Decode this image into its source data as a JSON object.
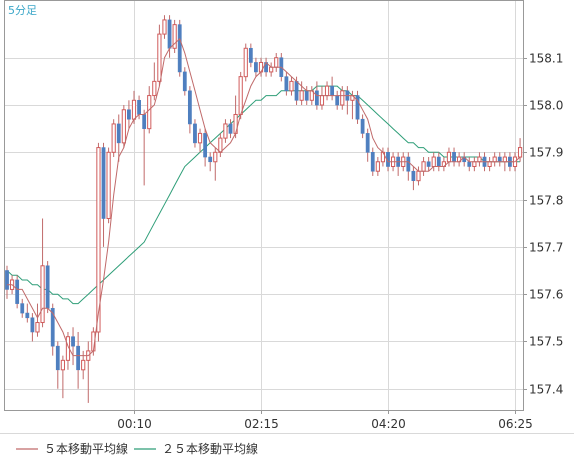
{
  "chart_data": {
    "type": "candlestick",
    "timeframe_label": "5分足",
    "x_tick_labels": [
      "00:10",
      "02:15",
      "04:20",
      "06:25"
    ],
    "y_ticks": [
      157.4,
      157.5,
      157.6,
      157.7,
      157.8,
      157.9,
      158.0,
      158.1
    ],
    "y_tick_labels": [
      "157.4",
      "157.5",
      "157.6",
      "157.7",
      "157.8",
      "157.9",
      "158.0",
      "158.1"
    ],
    "ylim": [
      157.355,
      158.22
    ],
    "grid": true,
    "legend_position": "bottom",
    "legend": [
      {
        "label": "５本移動平均線",
        "color": "#c06a6a"
      },
      {
        "label": "２５本移動平均線",
        "color": "#2e9e78"
      }
    ],
    "colors": {
      "up": "#d15b5b",
      "down": "#4f7fbf",
      "wick": "#c06a6a",
      "ma5": "#c06a6a",
      "ma25": "#2e9e78",
      "grid": "#d9d9d9",
      "axis": "#999999"
    },
    "candles": [
      [
        157.65,
        157.61,
        157.66,
        157.59
      ],
      [
        157.61,
        157.63,
        157.64,
        157.6
      ],
      [
        157.63,
        157.58,
        157.64,
        157.57
      ],
      [
        157.58,
        157.56,
        157.59,
        157.55
      ],
      [
        157.56,
        157.55,
        157.58,
        157.54
      ],
      [
        157.55,
        157.52,
        157.56,
        157.5
      ],
      [
        157.52,
        157.54,
        157.58,
        157.51
      ],
      [
        157.54,
        157.66,
        157.76,
        157.53
      ],
      [
        157.66,
        157.57,
        157.67,
        157.56
      ],
      [
        157.57,
        157.49,
        157.58,
        157.47
      ],
      [
        157.49,
        157.44,
        157.5,
        157.4
      ],
      [
        157.44,
        157.46,
        157.47,
        157.38
      ],
      [
        157.46,
        157.51,
        157.52,
        157.44
      ],
      [
        157.51,
        157.49,
        157.53,
        157.45
      ],
      [
        157.49,
        157.44,
        157.52,
        157.4
      ],
      [
        157.44,
        157.46,
        157.48,
        157.42
      ],
      [
        157.46,
        157.48,
        157.5,
        157.37
      ],
      [
        157.48,
        157.52,
        157.53,
        157.47
      ],
      [
        157.52,
        157.91,
        157.92,
        157.5
      ],
      [
        157.91,
        157.76,
        157.92,
        157.7
      ],
      [
        157.76,
        157.9,
        157.91,
        157.75
      ],
      [
        157.9,
        157.96,
        157.97,
        157.89
      ],
      [
        157.96,
        157.92,
        157.98,
        157.88
      ],
      [
        157.92,
        157.99,
        158.0,
        157.91
      ],
      [
        157.99,
        157.97,
        158.01,
        157.95
      ],
      [
        157.97,
        158.01,
        158.03,
        157.96
      ],
      [
        158.01,
        157.98,
        158.02,
        157.97
      ],
      [
        157.98,
        157.95,
        157.99,
        157.83
      ],
      [
        157.95,
        158.02,
        158.04,
        157.94
      ],
      [
        158.02,
        158.05,
        158.09,
        158.01
      ],
      [
        158.05,
        158.15,
        158.17,
        158.04
      ],
      [
        158.15,
        158.18,
        158.19,
        158.14
      ],
      [
        158.18,
        158.12,
        158.19,
        158.1
      ],
      [
        158.12,
        158.17,
        158.18,
        158.11
      ],
      [
        158.17,
        158.07,
        158.18,
        158.06
      ],
      [
        158.07,
        158.03,
        158.08,
        158.02
      ],
      [
        158.03,
        157.96,
        158.04,
        157.94
      ],
      [
        157.96,
        157.92,
        157.97,
        157.91
      ],
      [
        157.92,
        157.94,
        157.95,
        157.9
      ],
      [
        157.94,
        157.89,
        157.95,
        157.87
      ],
      [
        157.89,
        157.88,
        157.9,
        157.86
      ],
      [
        157.88,
        157.9,
        157.91,
        157.84
      ],
      [
        157.9,
        157.93,
        157.94,
        157.89
      ],
      [
        157.93,
        157.96,
        157.97,
        157.92
      ],
      [
        157.96,
        157.94,
        157.97,
        157.93
      ],
      [
        157.94,
        157.98,
        158.02,
        157.93
      ],
      [
        157.98,
        158.06,
        158.07,
        157.97
      ],
      [
        158.06,
        158.12,
        158.13,
        158.05
      ],
      [
        158.12,
        158.09,
        158.13,
        158.08
      ],
      [
        158.09,
        158.07,
        158.1,
        158.06
      ],
      [
        158.07,
        158.09,
        158.1,
        158.06
      ],
      [
        158.09,
        158.07,
        158.1,
        158.06
      ],
      [
        158.07,
        158.08,
        158.09,
        158.06
      ],
      [
        158.08,
        158.1,
        158.11,
        158.07
      ],
      [
        158.1,
        158.06,
        158.11,
        158.05
      ],
      [
        158.06,
        158.03,
        158.07,
        158.02
      ],
      [
        158.03,
        158.05,
        158.06,
        158.02
      ],
      [
        158.05,
        158.01,
        158.06,
        158.0
      ],
      [
        158.01,
        158.03,
        158.05,
        158.0
      ],
      [
        158.03,
        158.01,
        158.04,
        158.0
      ],
      [
        158.01,
        158.03,
        158.04,
        158.0
      ],
      [
        158.03,
        158.0,
        158.05,
        157.99
      ],
      [
        158.0,
        158.02,
        158.04,
        157.99
      ],
      [
        158.02,
        158.04,
        158.05,
        158.01
      ],
      [
        158.04,
        158.02,
        158.06,
        158.01
      ],
      [
        158.02,
        158.0,
        158.03,
        157.99
      ],
      [
        158.0,
        158.03,
        158.04,
        157.99
      ],
      [
        158.03,
        158.01,
        158.04,
        157.98
      ],
      [
        158.01,
        158.02,
        158.03,
        157.97
      ],
      [
        158.02,
        157.97,
        158.03,
        157.96
      ],
      [
        157.97,
        157.94,
        157.98,
        157.93
      ],
      [
        157.94,
        157.9,
        157.95,
        157.88
      ],
      [
        157.9,
        157.86,
        157.91,
        157.85
      ],
      [
        157.86,
        157.88,
        157.89,
        157.85
      ],
      [
        157.88,
        157.9,
        157.91,
        157.87
      ],
      [
        157.9,
        157.87,
        157.91,
        157.86
      ],
      [
        157.87,
        157.89,
        157.9,
        157.86
      ],
      [
        157.89,
        157.87,
        157.9,
        157.85
      ],
      [
        157.87,
        157.89,
        157.9,
        157.86
      ],
      [
        157.89,
        157.86,
        157.9,
        157.84
      ],
      [
        157.86,
        157.84,
        157.87,
        157.82
      ],
      [
        157.84,
        157.86,
        157.87,
        157.83
      ],
      [
        157.86,
        157.88,
        157.89,
        157.85
      ],
      [
        157.88,
        157.87,
        157.89,
        157.86
      ],
      [
        157.87,
        157.89,
        157.9,
        157.86
      ],
      [
        157.89,
        157.87,
        157.9,
        157.86
      ],
      [
        157.87,
        157.88,
        157.89,
        157.86
      ],
      [
        157.88,
        157.9,
        157.91,
        157.87
      ],
      [
        157.9,
        157.88,
        157.91,
        157.87
      ],
      [
        157.88,
        157.89,
        157.9,
        157.87
      ],
      [
        157.89,
        157.88,
        157.9,
        157.87
      ],
      [
        157.88,
        157.87,
        157.89,
        157.86
      ],
      [
        157.87,
        157.88,
        157.89,
        157.86
      ],
      [
        157.88,
        157.89,
        157.9,
        157.87
      ],
      [
        157.89,
        157.87,
        157.9,
        157.86
      ],
      [
        157.87,
        157.88,
        157.89,
        157.86
      ],
      [
        157.88,
        157.89,
        157.9,
        157.87
      ],
      [
        157.89,
        157.88,
        157.9,
        157.87
      ],
      [
        157.88,
        157.89,
        157.9,
        157.86
      ],
      [
        157.89,
        157.87,
        157.9,
        157.86
      ],
      [
        157.87,
        157.89,
        157.9,
        157.86
      ],
      [
        157.89,
        157.91,
        157.93,
        157.88
      ]
    ],
    "ma5": [
      157.62,
      157.62,
      157.61,
      157.61,
      157.59,
      157.57,
      157.55,
      157.57,
      157.57,
      157.56,
      157.54,
      157.52,
      157.49,
      157.47,
      157.47,
      157.47,
      157.47,
      157.48,
      157.56,
      157.63,
      157.71,
      157.81,
      157.89,
      157.91,
      157.95,
      157.97,
      157.98,
      157.98,
      157.99,
      158.0,
      158.04,
      158.1,
      158.12,
      158.13,
      158.14,
      158.11,
      158.07,
      158.03,
      157.99,
      157.95,
      157.92,
      157.91,
      157.9,
      157.91,
      157.92,
      157.94,
      157.98,
      158.01,
      158.04,
      158.06,
      158.07,
      158.09,
      158.08,
      158.08,
      158.08,
      158.07,
      158.06,
      158.05,
      158.04,
      158.03,
      158.03,
      158.02,
      158.02,
      158.02,
      158.02,
      158.02,
      158.02,
      158.02,
      158.02,
      158.01,
      157.99,
      157.97,
      157.93,
      157.91,
      157.9,
      157.88,
      157.88,
      157.88,
      157.88,
      157.88,
      157.87,
      157.86,
      157.86,
      157.86,
      157.87,
      157.87,
      157.87,
      157.88,
      157.88,
      157.88,
      157.89,
      157.88,
      157.88,
      157.88,
      157.88,
      157.88,
      157.88,
      157.88,
      157.88,
      157.88,
      157.88,
      157.89
    ],
    "ma25": [
      157.65,
      157.64,
      157.64,
      157.63,
      157.63,
      157.62,
      157.62,
      157.61,
      157.61,
      157.6,
      157.6,
      157.59,
      157.59,
      157.58,
      157.58,
      157.59,
      157.6,
      157.61,
      157.62,
      157.63,
      157.64,
      157.65,
      157.66,
      157.67,
      157.68,
      157.69,
      157.7,
      157.71,
      157.73,
      157.75,
      157.77,
      157.79,
      157.81,
      157.83,
      157.85,
      157.87,
      157.88,
      157.89,
      157.9,
      157.91,
      157.92,
      157.93,
      157.94,
      157.95,
      157.96,
      157.97,
      157.98,
      157.99,
      158.0,
      158.01,
      158.01,
      158.02,
      158.02,
      158.02,
      158.03,
      158.03,
      158.03,
      158.03,
      158.03,
      158.03,
      158.03,
      158.04,
      158.04,
      158.04,
      158.04,
      158.04,
      158.03,
      158.03,
      158.02,
      158.02,
      158.01,
      158.0,
      157.99,
      157.98,
      157.97,
      157.96,
      157.95,
      157.94,
      157.93,
      157.92,
      157.92,
      157.91,
      157.91,
      157.9,
      157.9,
      157.9,
      157.89,
      157.89,
      157.89,
      157.89,
      157.89,
      157.89,
      157.89,
      157.89,
      157.88,
      157.88,
      157.88,
      157.88,
      157.88,
      157.88,
      157.88,
      157.88
    ]
  }
}
